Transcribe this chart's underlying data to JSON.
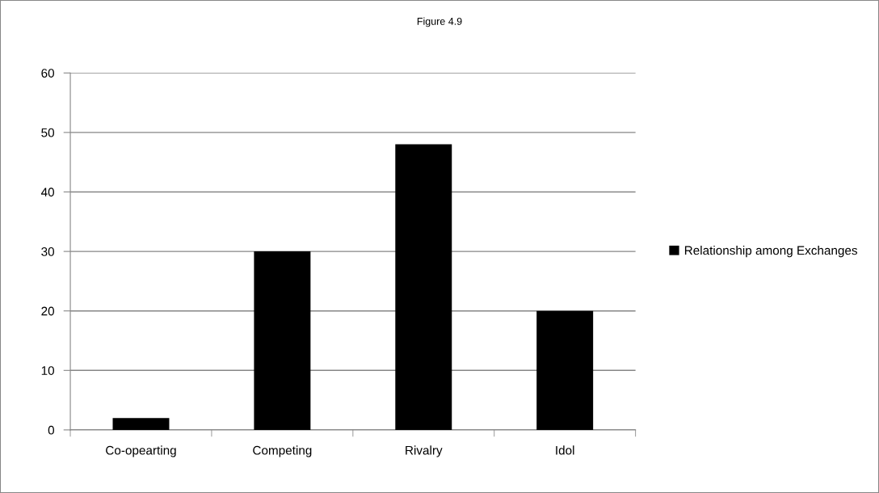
{
  "chart_data": {
    "type": "bar",
    "title": "Figure 4.9",
    "categories": [
      "Co-opearting",
      "Competing",
      "Rivalry",
      "Idol"
    ],
    "series": [
      {
        "name": "Relationship among Exchanges",
        "color": "#000000",
        "values": [
          2,
          30,
          48,
          20
        ]
      }
    ],
    "ylim": [
      0,
      60
    ],
    "yticks": [
      0,
      10,
      20,
      30,
      40,
      50,
      60
    ],
    "grid": "y",
    "legend": "right"
  }
}
